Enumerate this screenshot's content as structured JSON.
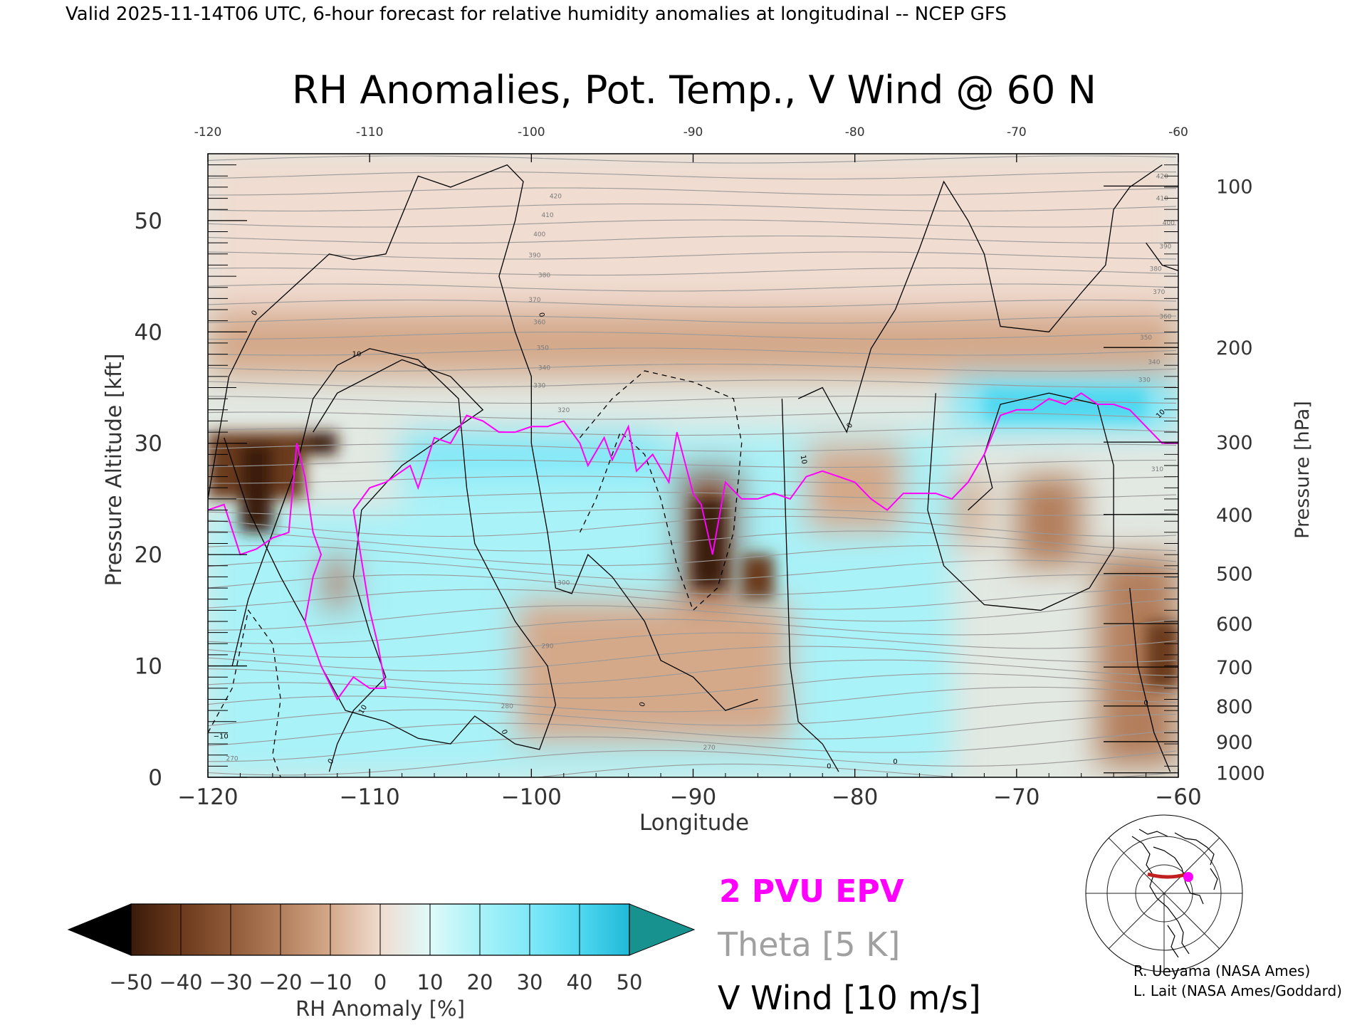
{
  "header": {
    "caption": "Valid 2025-11-14T06 UTC, 6-hour forecast for relative humidity anomalies at longitudinal -- NCEP GFS"
  },
  "chart_data": {
    "type": "heatmap",
    "title": "RH Anomalies, Pot. Temp., V Wind @ 60 N",
    "xlabel": "Longitude",
    "ylabel": "Pressure Altitude [kft]",
    "ylabel_right": "Pressure [hPa]",
    "xlim": [
      -120,
      -60
    ],
    "ylim": [
      0,
      56
    ],
    "x_ticks": [
      -120,
      -110,
      -100,
      -90,
      -80,
      -70,
      -60
    ],
    "x_tick_labels": [
      "−120",
      "−110",
      "−100",
      "−90",
      "−80",
      "−70",
      "−60"
    ],
    "y_ticks": [
      0,
      10,
      20,
      30,
      40,
      50
    ],
    "y_tick_labels": [
      "0",
      "10",
      "20",
      "30",
      "40",
      "50"
    ],
    "pressure_ticks": [
      {
        "label": "100",
        "kft": 53.1
      },
      {
        "label": "200",
        "kft": 38.6
      },
      {
        "label": "300",
        "kft": 30.1
      },
      {
        "label": "400",
        "kft": 23.6
      },
      {
        "label": "500",
        "kft": 18.3
      },
      {
        "label": "600",
        "kft": 13.8
      },
      {
        "label": "700",
        "kft": 9.9
      },
      {
        "label": "800",
        "kft": 6.4
      },
      {
        "label": "900",
        "kft": 3.2
      },
      {
        "label": "1000",
        "kft": 0.4
      }
    ],
    "colorbar": {
      "label": "RH Anomaly [%]",
      "tick_labels": [
        "−50",
        "−40",
        "−30",
        "−20",
        "−10",
        "0",
        "10",
        "20",
        "30",
        "40",
        "50"
      ],
      "colors": [
        "#000000",
        "#3b1b0b",
        "#6b3a1c",
        "#8f5a38",
        "#b27e5c",
        "#d4a98a",
        "#f0dcd0",
        "#dffafa",
        "#a8f2f8",
        "#80e8f8",
        "#4fd8f0",
        "#20b8d8",
        "#0f8aa8"
      ],
      "under_color": "#000000",
      "over_color": "#17928e"
    },
    "background_color": "#e2e8e2",
    "rh_anomaly_regions": [
      {
        "lon": [
          -120,
          -60
        ],
        "kft": [
          42,
          56
        ],
        "rh": 0
      },
      {
        "lon": [
          -120,
          -60
        ],
        "kft": [
          36,
          42
        ],
        "rh": -10
      },
      {
        "lon": [
          -108,
          -74
        ],
        "kft": [
          0,
          31
        ],
        "rh": 15
      },
      {
        "lon": [
          -108,
          -92
        ],
        "kft": [
          27,
          31
        ],
        "rh": 30
      },
      {
        "lon": [
          -120,
          -114
        ],
        "kft": [
          25,
          31
        ],
        "rh": -45
      },
      {
        "lon": [
          -118,
          -116
        ],
        "kft": [
          22,
          30
        ],
        "rh": -55
      },
      {
        "lon": [
          -114,
          -112
        ],
        "kft": [
          29,
          31
        ],
        "rh": -50
      },
      {
        "lon": [
          -120,
          -108
        ],
        "kft": [
          0,
          24
        ],
        "rh": 15
      },
      {
        "lon": [
          -113,
          -111
        ],
        "kft": [
          15,
          20
        ],
        "rh": -20
      },
      {
        "lon": [
          -91,
          -87
        ],
        "kft": [
          4,
          28
        ],
        "rh": -30
      },
      {
        "lon": [
          -90,
          -88
        ],
        "kft": [
          17,
          25
        ],
        "rh": -55
      },
      {
        "lon": [
          -87,
          -85
        ],
        "kft": [
          16,
          20
        ],
        "rh": -40
      },
      {
        "lon": [
          -99,
          -92
        ],
        "kft": [
          9,
          12
        ],
        "rh": -35
      },
      {
        "lon": [
          -101,
          -84
        ],
        "kft": [
          3,
          16
        ],
        "rh": -15
      },
      {
        "lon": [
          -83,
          -77
        ],
        "kft": [
          22,
          30
        ],
        "rh": -15
      },
      {
        "lon": [
          -72,
          -62
        ],
        "kft": [
          32,
          35
        ],
        "rh": 40
      },
      {
        "lon": [
          -74,
          -60
        ],
        "kft": [
          31,
          36
        ],
        "rh": 30
      },
      {
        "lon": [
          -70,
          -66
        ],
        "kft": [
          19,
          27
        ],
        "rh": -20
      },
      {
        "lon": [
          -74,
          -72
        ],
        "kft": [
          21,
          27
        ],
        "rh": -15
      },
      {
        "lon": [
          -65,
          -60
        ],
        "kft": [
          1,
          20
        ],
        "rh": -25
      },
      {
        "lon": [
          -62,
          -60
        ],
        "kft": [
          8,
          14
        ],
        "rh": -45
      }
    ],
    "theta_labels": [
      {
        "label": "420",
        "lon": -98.5,
        "kft": 52
      },
      {
        "label": "410",
        "lon": -99,
        "kft": 50.3
      },
      {
        "label": "400",
        "lon": -99.5,
        "kft": 48.6
      },
      {
        "label": "390",
        "lon": -99.8,
        "kft": 46.7
      },
      {
        "label": "380",
        "lon": -99.2,
        "kft": 44.9
      },
      {
        "label": "370",
        "lon": -99.8,
        "kft": 42.7
      },
      {
        "label": "360",
        "lon": -99.5,
        "kft": 40.7
      },
      {
        "label": "350",
        "lon": -99.3,
        "kft": 38.4
      },
      {
        "label": "340",
        "lon": -99.2,
        "kft": 36.6
      },
      {
        "label": "330",
        "lon": -99.5,
        "kft": 35
      },
      {
        "label": "320",
        "lon": -98,
        "kft": 32.8
      },
      {
        "label": "300",
        "lon": -98,
        "kft": 17.3
      },
      {
        "label": "290",
        "lon": -99,
        "kft": 11.6
      },
      {
        "label": "280",
        "lon": -101.5,
        "kft": 6.2
      },
      {
        "label": "270",
        "lon": -89,
        "kft": 2.5
      },
      {
        "label": "270",
        "lon": -118.5,
        "kft": 1.5
      },
      {
        "label": "420",
        "lon": -61,
        "kft": 53.8
      },
      {
        "label": "410",
        "lon": -61,
        "kft": 51.8
      },
      {
        "label": "400",
        "lon": -60.6,
        "kft": 49.6
      },
      {
        "label": "390",
        "lon": -60.8,
        "kft": 47.5
      },
      {
        "label": "380",
        "lon": -61.4,
        "kft": 45.5
      },
      {
        "label": "370",
        "lon": -61.2,
        "kft": 43.4
      },
      {
        "label": "360",
        "lon": -60.8,
        "kft": 41.2
      },
      {
        "label": "350",
        "lon": -62,
        "kft": 39.3
      },
      {
        "label": "340",
        "lon": -61.5,
        "kft": 37.1
      },
      {
        "label": "330",
        "lon": -62.1,
        "kft": 35.5
      },
      {
        "label": "310",
        "lon": -61.3,
        "kft": 27.5
      }
    ],
    "vwind_labels": [
      {
        "label": "0",
        "lon": -117,
        "kft": 41.6,
        "rot": -60
      },
      {
        "label": "10",
        "lon": -110.8,
        "kft": 37.8,
        "rot": 0
      },
      {
        "label": "0",
        "lon": -99.5,
        "kft": 41.5,
        "rot": 80
      },
      {
        "label": "0",
        "lon": -80.2,
        "kft": 31.5,
        "rot": -60
      },
      {
        "label": "10",
        "lon": -83.3,
        "kft": 28.5,
        "rot": 80
      },
      {
        "label": "10",
        "lon": -110.3,
        "kft": 6,
        "rot": -60
      },
      {
        "label": "0",
        "lon": -112.3,
        "kft": 1.3,
        "rot": -50
      },
      {
        "label": "0",
        "lon": -101.8,
        "kft": 4,
        "rot": 70
      },
      {
        "label": "0",
        "lon": -93,
        "kft": 6.5,
        "rot": -75
      },
      {
        "label": "0",
        "lon": -81.6,
        "kft": 0.8,
        "rot": 0
      },
      {
        "label": "0",
        "lon": -77.5,
        "kft": 1.2,
        "rot": 0
      },
      {
        "label": "0",
        "lon": -62,
        "kft": 6.5,
        "rot": 0
      },
      {
        "label": "−10",
        "lon": -119.2,
        "kft": 3.5,
        "rot": 0
      },
      {
        "label": "10",
        "lon": -61,
        "kft": 32.5,
        "rot": -45
      }
    ],
    "epv_2pvu_line": [
      [
        -120,
        24
      ],
      [
        -119,
        24.5
      ],
      [
        -118,
        20
      ],
      [
        -117,
        20.5
      ],
      [
        -116,
        21.5
      ],
      [
        -115,
        22
      ],
      [
        -114.5,
        30
      ],
      [
        -114,
        27
      ],
      [
        -113.5,
        22
      ],
      [
        -113,
        20
      ],
      [
        -113.5,
        18
      ],
      [
        -114,
        14
      ],
      [
        -113,
        10
      ],
      [
        -112,
        7
      ],
      [
        -111,
        9
      ],
      [
        -110,
        8
      ],
      [
        -109,
        8
      ],
      [
        -109.5,
        12
      ],
      [
        -110,
        15
      ],
      [
        -111,
        24
      ],
      [
        -110,
        26
      ],
      [
        -109,
        26.5
      ],
      [
        -107.5,
        28
      ],
      [
        -107,
        26
      ],
      [
        -106,
        30.5
      ],
      [
        -105,
        30
      ],
      [
        -104,
        32.5
      ],
      [
        -103,
        32
      ],
      [
        -102,
        31
      ],
      [
        -101,
        31
      ],
      [
        -100,
        31.5
      ],
      [
        -99,
        31.5
      ],
      [
        -98,
        32
      ],
      [
        -97,
        30
      ],
      [
        -96.5,
        28
      ],
      [
        -95.5,
        30.5
      ],
      [
        -95,
        28.5
      ],
      [
        -94,
        31.5
      ],
      [
        -93.5,
        27.5
      ],
      [
        -92.5,
        29
      ],
      [
        -91.5,
        26.5
      ],
      [
        -91,
        31
      ],
      [
        -90,
        25.5
      ],
      [
        -89.5,
        24.5
      ],
      [
        -88.8,
        20
      ],
      [
        -88,
        26.5
      ],
      [
        -87,
        25
      ],
      [
        -86,
        25
      ],
      [
        -85,
        25.5
      ],
      [
        -84,
        25
      ],
      [
        -83,
        27
      ],
      [
        -82,
        27.5
      ],
      [
        -81,
        27
      ],
      [
        -80,
        26.5
      ],
      [
        -79,
        25
      ],
      [
        -78,
        24
      ],
      [
        -77,
        25.5
      ],
      [
        -76,
        25.5
      ],
      [
        -75,
        25.5
      ],
      [
        -74,
        25
      ],
      [
        -73,
        26.5
      ],
      [
        -72,
        29
      ],
      [
        -71,
        32.5
      ],
      [
        -70,
        33
      ],
      [
        -69,
        33
      ],
      [
        -68,
        34
      ],
      [
        -67,
        33.5
      ],
      [
        -66,
        34.5
      ],
      [
        -65,
        33.5
      ],
      [
        -64,
        33.5
      ],
      [
        -63,
        33
      ],
      [
        -62,
        31.5
      ],
      [
        -61,
        30
      ],
      [
        -60,
        30
      ]
    ]
  },
  "legend": {
    "epv": "2 PVU EPV",
    "theta": "Theta [5 K]",
    "vwind": "V Wind [10 m/s]",
    "epv_color": "#ff00ff",
    "theta_color": "#a0a0a0",
    "vwind_color": "#000000"
  },
  "inset_map": {
    "marker_color": "#ff00ff",
    "line_color": "#c02020"
  },
  "credits": {
    "line1": "R. Ueyama (NASA Ames)",
    "line2": "L. Lait (NASA Ames/Goddard)"
  }
}
